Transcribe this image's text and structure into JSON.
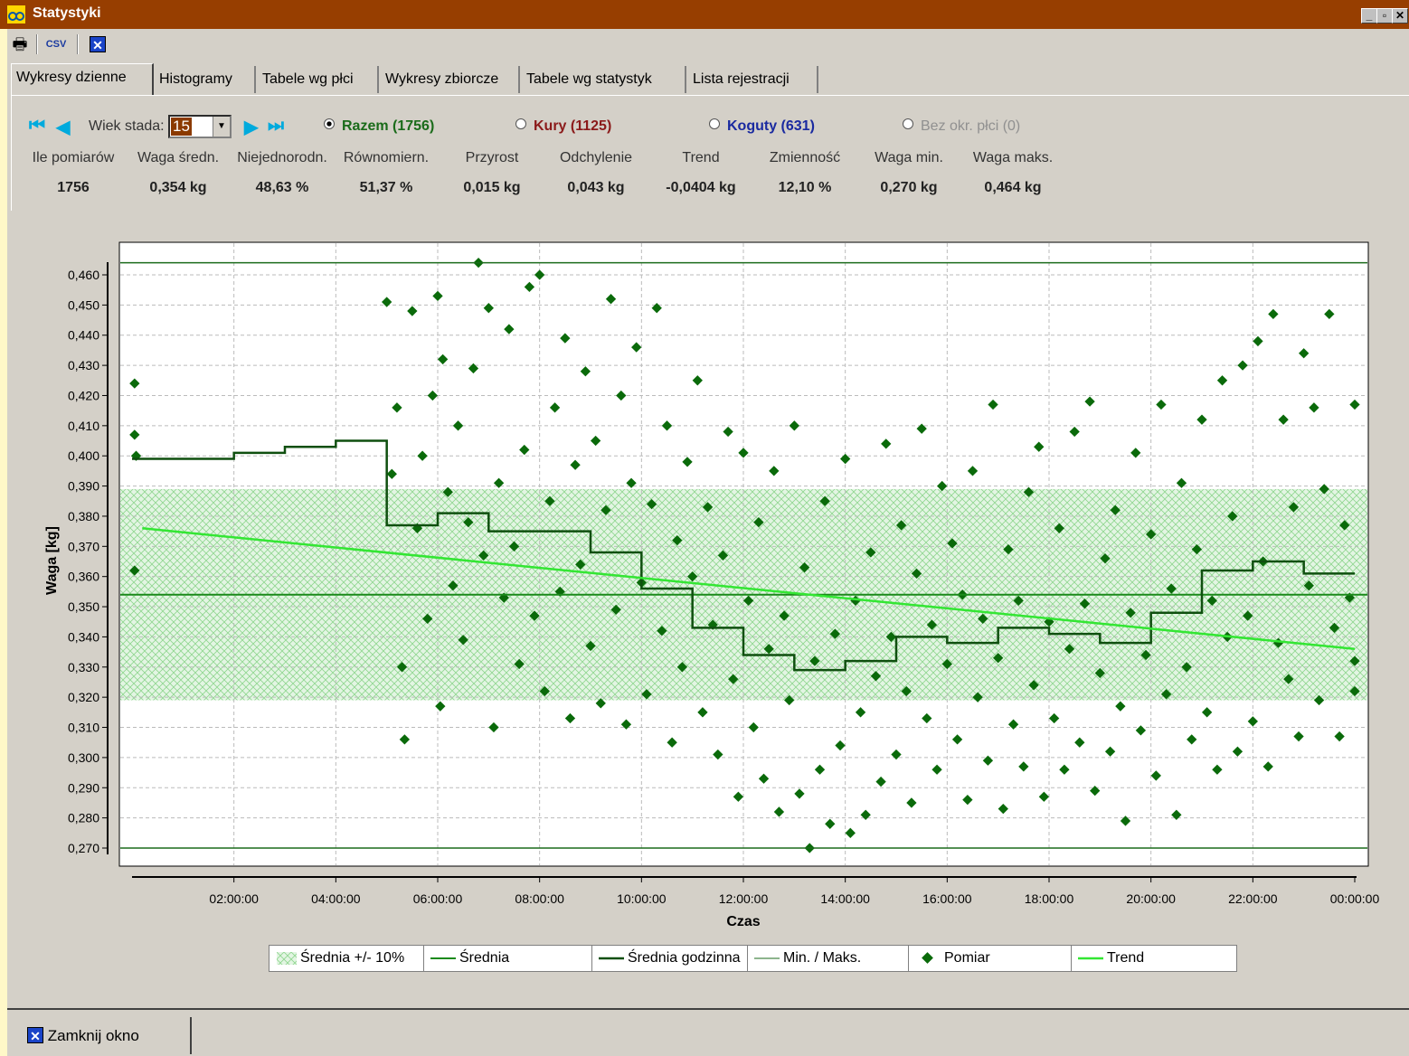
{
  "window": {
    "title": "Statystyki"
  },
  "toolbar": {
    "print_icon": "printer-icon",
    "csv_label": "CSV",
    "close_icon": "close-x-icon"
  },
  "tabs": [
    {
      "label": "Wykresy dzienne",
      "active": true
    },
    {
      "label": "Histogramy"
    },
    {
      "label": "Tabele wg płci"
    },
    {
      "label": "Wykresy zbiorcze"
    },
    {
      "label": "Tabele wg statystyk"
    },
    {
      "label": "Lista rejestracji"
    }
  ],
  "controls": {
    "age_label": "Wiek stada:",
    "age_value": "15",
    "radios": [
      {
        "label": "Razem (1756)",
        "checked": true,
        "color": "#1a6b1a"
      },
      {
        "label": "Kury (1125)",
        "checked": false,
        "color": "#8b1a1a"
      },
      {
        "label": "Koguty (631)",
        "checked": false,
        "color": "#1a2aa0"
      },
      {
        "label": "Bez okr. płci (0)",
        "checked": false,
        "color": "#909090"
      }
    ]
  },
  "stats": {
    "headers": [
      "Ile pomiarów",
      "Waga średn.",
      "Niejednorodn.",
      "Równomiern.",
      "Przyrost",
      "Odchylenie",
      "Trend",
      "Zmienność",
      "Waga min.",
      "Waga maks."
    ],
    "values": [
      "1756",
      "0,354 kg",
      "48,63 %",
      "51,37 %",
      "0,015 kg",
      "0,043 kg",
      "-0,0404 kg",
      "12,10 %",
      "0,270 kg",
      "0,464 kg"
    ]
  },
  "chart_data": {
    "type": "scatter",
    "ylabel": "Waga [kg]",
    "xlabel": "Czas",
    "ylim": [
      0.27,
      0.46
    ],
    "y_ticks": [
      "0,460",
      "0,450",
      "0,440",
      "0,430",
      "0,420",
      "0,410",
      "0,400",
      "0,390",
      "0,380",
      "0,370",
      "0,360",
      "0,350",
      "0,340",
      "0,330",
      "0,320",
      "0,310",
      "0,300",
      "0,290",
      "0,280",
      "0,270"
    ],
    "x_ticks": [
      "02:00:00",
      "04:00:00",
      "06:00:00",
      "08:00:00",
      "10:00:00",
      "12:00:00",
      "14:00:00",
      "16:00:00",
      "18:00:00",
      "20:00:00",
      "22:00:00",
      "00:00:00"
    ],
    "mean": 0.354,
    "band": [
      0.319,
      0.389
    ],
    "min": 0.27,
    "max": 0.464,
    "trend": {
      "start_hour": 0.2,
      "start": 0.376,
      "end_hour": 24,
      "end": 0.336
    },
    "hourly_mean": [
      {
        "h": 0,
        "v": 0.399
      },
      {
        "h": 1,
        "v": 0.399
      },
      {
        "h": 2,
        "v": 0.401
      },
      {
        "h": 3,
        "v": 0.403
      },
      {
        "h": 4,
        "v": 0.405
      },
      {
        "h": 5,
        "v": 0.377
      },
      {
        "h": 6,
        "v": 0.381
      },
      {
        "h": 7,
        "v": 0.375
      },
      {
        "h": 8,
        "v": 0.375
      },
      {
        "h": 9,
        "v": 0.368
      },
      {
        "h": 10,
        "v": 0.356
      },
      {
        "h": 11,
        "v": 0.343
      },
      {
        "h": 12,
        "v": 0.334
      },
      {
        "h": 13,
        "v": 0.329
      },
      {
        "h": 14,
        "v": 0.332
      },
      {
        "h": 15,
        "v": 0.34
      },
      {
        "h": 16,
        "v": 0.338
      },
      {
        "h": 17,
        "v": 0.343
      },
      {
        "h": 18,
        "v": 0.341
      },
      {
        "h": 19,
        "v": 0.338
      },
      {
        "h": 20,
        "v": 0.348
      },
      {
        "h": 21,
        "v": 0.362
      },
      {
        "h": 22,
        "v": 0.365
      },
      {
        "h": 23,
        "v": 0.361
      }
    ],
    "points": [
      [
        0.05,
        0.424
      ],
      [
        0.05,
        0.407
      ],
      [
        0.08,
        0.4
      ],
      [
        0.05,
        0.362
      ],
      [
        5.0,
        0.451
      ],
      [
        5.1,
        0.394
      ],
      [
        5.2,
        0.416
      ],
      [
        5.3,
        0.33
      ],
      [
        5.35,
        0.306
      ],
      [
        5.5,
        0.448
      ],
      [
        5.6,
        0.376
      ],
      [
        5.7,
        0.4
      ],
      [
        5.8,
        0.346
      ],
      [
        5.9,
        0.42
      ],
      [
        6.0,
        0.453
      ],
      [
        6.05,
        0.317
      ],
      [
        6.1,
        0.432
      ],
      [
        6.2,
        0.388
      ],
      [
        6.3,
        0.357
      ],
      [
        6.4,
        0.41
      ],
      [
        6.5,
        0.339
      ],
      [
        6.6,
        0.378
      ],
      [
        6.7,
        0.429
      ],
      [
        6.8,
        0.464
      ],
      [
        6.9,
        0.367
      ],
      [
        7.0,
        0.449
      ],
      [
        7.1,
        0.31
      ],
      [
        7.2,
        0.391
      ],
      [
        7.3,
        0.353
      ],
      [
        7.4,
        0.442
      ],
      [
        7.5,
        0.37
      ],
      [
        7.6,
        0.331
      ],
      [
        7.7,
        0.402
      ],
      [
        7.8,
        0.456
      ],
      [
        7.9,
        0.347
      ],
      [
        8.0,
        0.46
      ],
      [
        8.1,
        0.322
      ],
      [
        8.2,
        0.385
      ],
      [
        8.3,
        0.416
      ],
      [
        8.4,
        0.355
      ],
      [
        8.5,
        0.439
      ],
      [
        8.6,
        0.313
      ],
      [
        8.7,
        0.397
      ],
      [
        8.8,
        0.364
      ],
      [
        8.9,
        0.428
      ],
      [
        9.0,
        0.337
      ],
      [
        9.1,
        0.405
      ],
      [
        9.2,
        0.318
      ],
      [
        9.3,
        0.382
      ],
      [
        9.4,
        0.452
      ],
      [
        9.5,
        0.349
      ],
      [
        9.6,
        0.42
      ],
      [
        9.7,
        0.311
      ],
      [
        9.8,
        0.391
      ],
      [
        9.9,
        0.436
      ],
      [
        10.0,
        0.358
      ],
      [
        10.1,
        0.321
      ],
      [
        10.2,
        0.384
      ],
      [
        10.3,
        0.449
      ],
      [
        10.4,
        0.342
      ],
      [
        10.5,
        0.41
      ],
      [
        10.6,
        0.305
      ],
      [
        10.7,
        0.372
      ],
      [
        10.8,
        0.33
      ],
      [
        10.9,
        0.398
      ],
      [
        11.0,
        0.36
      ],
      [
        11.1,
        0.425
      ],
      [
        11.2,
        0.315
      ],
      [
        11.3,
        0.383
      ],
      [
        11.4,
        0.344
      ],
      [
        11.5,
        0.301
      ],
      [
        11.6,
        0.367
      ],
      [
        11.7,
        0.408
      ],
      [
        11.8,
        0.326
      ],
      [
        11.9,
        0.287
      ],
      [
        12.0,
        0.401
      ],
      [
        12.1,
        0.352
      ],
      [
        12.2,
        0.31
      ],
      [
        12.3,
        0.378
      ],
      [
        12.4,
        0.293
      ],
      [
        12.5,
        0.336
      ],
      [
        12.6,
        0.395
      ],
      [
        12.7,
        0.282
      ],
      [
        12.8,
        0.347
      ],
      [
        12.9,
        0.319
      ],
      [
        13.0,
        0.41
      ],
      [
        13.1,
        0.288
      ],
      [
        13.2,
        0.363
      ],
      [
        13.3,
        0.27
      ],
      [
        13.4,
        0.332
      ],
      [
        13.5,
        0.296
      ],
      [
        13.6,
        0.385
      ],
      [
        13.7,
        0.278
      ],
      [
        13.8,
        0.341
      ],
      [
        13.9,
        0.304
      ],
      [
        14.0,
        0.399
      ],
      [
        14.1,
        0.275
      ],
      [
        14.2,
        0.352
      ],
      [
        14.3,
        0.315
      ],
      [
        14.4,
        0.281
      ],
      [
        14.5,
        0.368
      ],
      [
        14.6,
        0.327
      ],
      [
        14.7,
        0.292
      ],
      [
        14.8,
        0.404
      ],
      [
        14.9,
        0.34
      ],
      [
        15.0,
        0.301
      ],
      [
        15.1,
        0.377
      ],
      [
        15.2,
        0.322
      ],
      [
        15.3,
        0.285
      ],
      [
        15.4,
        0.361
      ],
      [
        15.5,
        0.409
      ],
      [
        15.6,
        0.313
      ],
      [
        15.7,
        0.344
      ],
      [
        15.8,
        0.296
      ],
      [
        15.9,
        0.39
      ],
      [
        16.0,
        0.331
      ],
      [
        16.1,
        0.371
      ],
      [
        16.2,
        0.306
      ],
      [
        16.3,
        0.354
      ],
      [
        16.4,
        0.286
      ],
      [
        16.5,
        0.395
      ],
      [
        16.6,
        0.32
      ],
      [
        16.7,
        0.346
      ],
      [
        16.8,
        0.299
      ],
      [
        16.9,
        0.417
      ],
      [
        17.0,
        0.333
      ],
      [
        17.1,
        0.283
      ],
      [
        17.2,
        0.369
      ],
      [
        17.3,
        0.311
      ],
      [
        17.4,
        0.352
      ],
      [
        17.5,
        0.297
      ],
      [
        17.6,
        0.388
      ],
      [
        17.7,
        0.324
      ],
      [
        17.8,
        0.403
      ],
      [
        17.9,
        0.287
      ],
      [
        18.0,
        0.345
      ],
      [
        18.1,
        0.313
      ],
      [
        18.2,
        0.376
      ],
      [
        18.3,
        0.296
      ],
      [
        18.4,
        0.336
      ],
      [
        18.5,
        0.408
      ],
      [
        18.6,
        0.305
      ],
      [
        18.7,
        0.351
      ],
      [
        18.8,
        0.418
      ],
      [
        18.9,
        0.289
      ],
      [
        19.0,
        0.328
      ],
      [
        19.1,
        0.366
      ],
      [
        19.2,
        0.302
      ],
      [
        19.3,
        0.382
      ],
      [
        19.4,
        0.317
      ],
      [
        19.5,
        0.279
      ],
      [
        19.6,
        0.348
      ],
      [
        19.7,
        0.401
      ],
      [
        19.8,
        0.309
      ],
      [
        19.9,
        0.334
      ],
      [
        20.0,
        0.374
      ],
      [
        20.1,
        0.294
      ],
      [
        20.2,
        0.417
      ],
      [
        20.3,
        0.321
      ],
      [
        20.4,
        0.356
      ],
      [
        20.5,
        0.281
      ],
      [
        20.6,
        0.391
      ],
      [
        20.7,
        0.33
      ],
      [
        20.8,
        0.306
      ],
      [
        20.9,
        0.369
      ],
      [
        21.0,
        0.412
      ],
      [
        21.1,
        0.315
      ],
      [
        21.2,
        0.352
      ],
      [
        21.3,
        0.296
      ],
      [
        21.4,
        0.425
      ],
      [
        21.5,
        0.34
      ],
      [
        21.6,
        0.38
      ],
      [
        21.7,
        0.302
      ],
      [
        21.8,
        0.43
      ],
      [
        21.9,
        0.347
      ],
      [
        22.0,
        0.312
      ],
      [
        22.1,
        0.438
      ],
      [
        22.2,
        0.365
      ],
      [
        22.3,
        0.297
      ],
      [
        22.4,
        0.447
      ],
      [
        22.5,
        0.338
      ],
      [
        22.6,
        0.412
      ],
      [
        22.7,
        0.326
      ],
      [
        22.8,
        0.383
      ],
      [
        22.9,
        0.307
      ],
      [
        23.0,
        0.434
      ],
      [
        23.1,
        0.357
      ],
      [
        23.2,
        0.416
      ],
      [
        23.3,
        0.319
      ],
      [
        23.4,
        0.389
      ],
      [
        23.5,
        0.447
      ],
      [
        23.6,
        0.343
      ],
      [
        23.7,
        0.307
      ],
      [
        23.8,
        0.377
      ],
      [
        23.9,
        0.353
      ],
      [
        24.0,
        0.417
      ],
      [
        24.0,
        0.332
      ],
      [
        24.0,
        0.322
      ]
    ],
    "legend": [
      {
        "label": "Średnia +/- 10%",
        "kind": "hatch",
        "color": "#a8e0a8"
      },
      {
        "label": "Średnia",
        "kind": "line",
        "color": "#1b8a1b"
      },
      {
        "label": "Średnia godzinna",
        "kind": "line",
        "color": "#0f4f0f"
      },
      {
        "label": "Min. / Maks.",
        "kind": "line",
        "color": "#1b6b1b"
      },
      {
        "label": "Pomiar",
        "kind": "marker",
        "color": "#0a6a0a"
      },
      {
        "label": "Trend",
        "kind": "line",
        "color": "#33e633"
      }
    ]
  },
  "footer": {
    "close_label": "Zamknij okno"
  }
}
